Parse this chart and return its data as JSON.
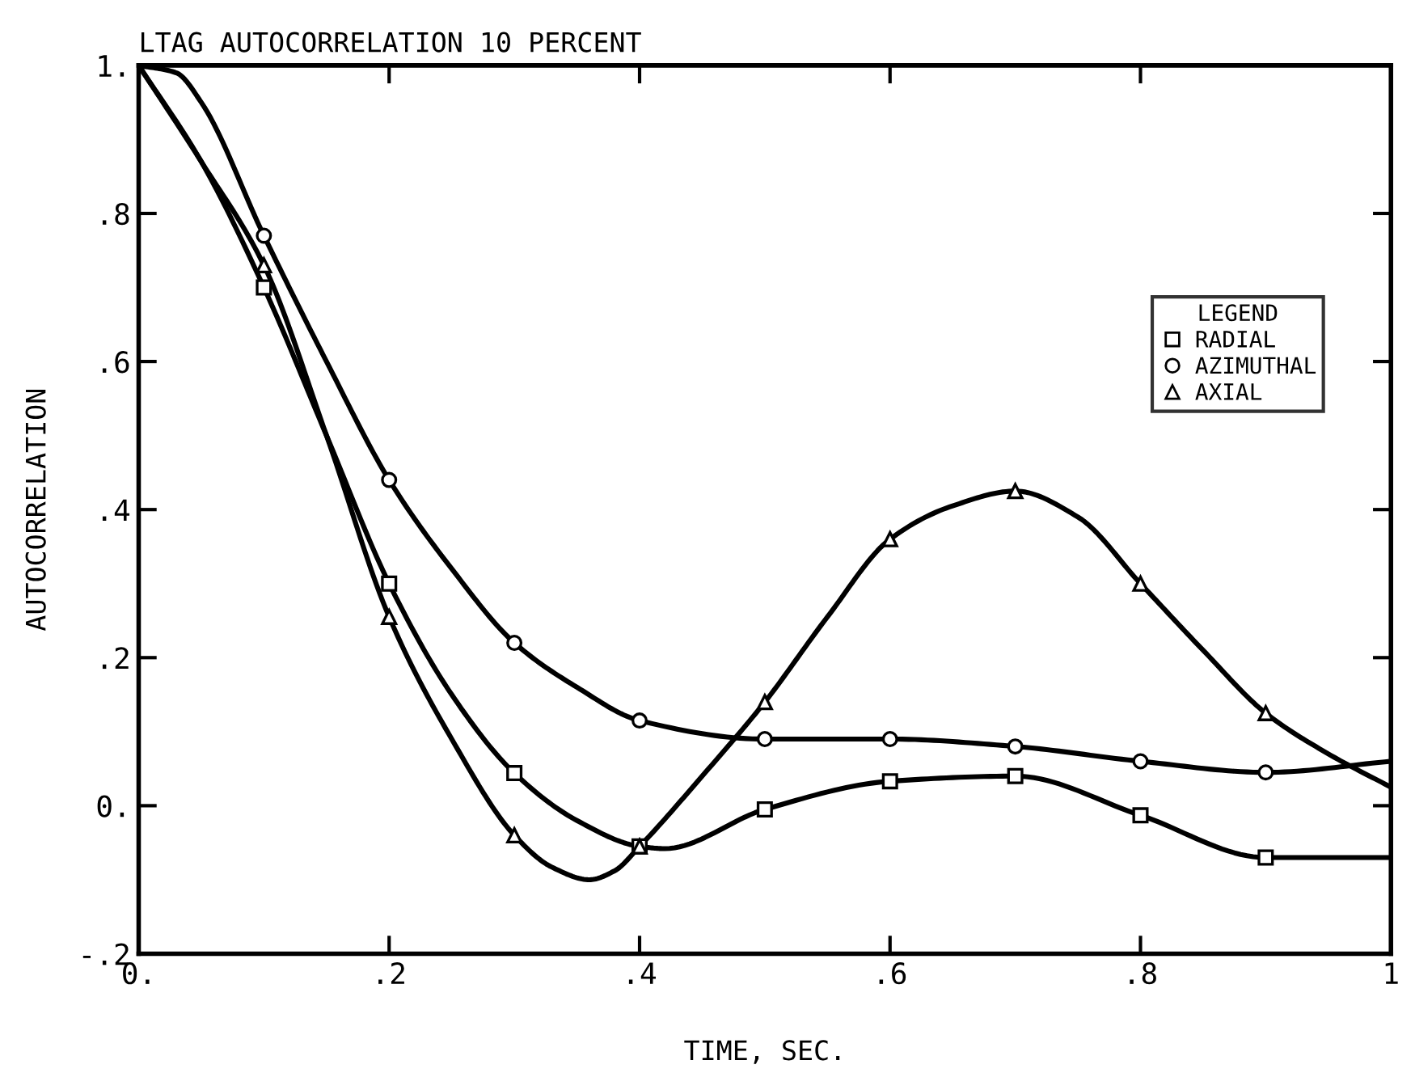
{
  "chart_data": {
    "type": "line",
    "title": "LTAG AUTOCORRELATION 10 PERCENT",
    "xlabel": "TIME, SEC.",
    "ylabel": "AUTOCORRELATION",
    "legend_title": "LEGEND",
    "series": [
      {
        "color": "#000000",
        "marker": "none",
        "x": [
          0,
          0.05,
          0.1,
          0.15,
          0.2,
          0.25,
          0.3,
          0.35,
          0.4,
          0.42,
          0.5,
          0.6,
          0.7,
          0.8,
          0.9,
          1.0
        ],
        "values": [
          1.0,
          0.87,
          0.7,
          0.5,
          0.3,
          0.15,
          0.044,
          -0.02,
          -0.055,
          -0.058,
          -0.005,
          0.033,
          0.04,
          -0.013,
          -0.07,
          -0.07
        ]
      },
      {
        "color": "#000000",
        "marker": "none",
        "x": [
          0,
          0.03,
          0.05,
          0.1,
          0.15,
          0.2,
          0.25,
          0.3,
          0.35,
          0.4,
          0.5,
          0.6,
          0.7,
          0.8,
          0.9,
          1.0
        ],
        "values": [
          1.0,
          0.99,
          0.95,
          0.77,
          0.6,
          0.44,
          0.32,
          0.22,
          0.16,
          0.115,
          0.09,
          0.09,
          0.08,
          0.06,
          0.045,
          0.06
        ]
      },
      {
        "color": "#000000",
        "marker": "none",
        "x": [
          0,
          0.05,
          0.1,
          0.15,
          0.2,
          0.25,
          0.3,
          0.33,
          0.36,
          0.38,
          0.4,
          0.45,
          0.5,
          0.55,
          0.6,
          0.65,
          0.7,
          0.75,
          0.8,
          0.85,
          0.9,
          0.95,
          1.0
        ],
        "values": [
          1.0,
          0.87,
          0.73,
          0.5,
          0.255,
          0.09,
          -0.04,
          -0.083,
          -0.1,
          -0.088,
          -0.055,
          0.04,
          0.14,
          0.255,
          0.36,
          0.405,
          0.425,
          0.39,
          0.3,
          0.21,
          0.125,
          0.07,
          0.025
        ]
      },
      {
        "type": "scatter",
        "name": "RADIAL",
        "color": "#000000",
        "marker": "square",
        "x": [
          0.1,
          0.2,
          0.3,
          0.4,
          0.5,
          0.6,
          0.7,
          0.8,
          0.9
        ],
        "values": [
          0.7,
          0.3,
          0.044,
          -0.055,
          -0.005,
          0.033,
          0.04,
          -0.013,
          -0.07
        ]
      },
      {
        "type": "scatter",
        "name": "AZIMUTHAL",
        "color": "#000000",
        "marker": "circle",
        "x": [
          0.1,
          0.2,
          0.3,
          0.4,
          0.5,
          0.6,
          0.7,
          0.8,
          0.9
        ],
        "values": [
          0.77,
          0.44,
          0.22,
          0.115,
          0.09,
          0.09,
          0.08,
          0.06,
          0.045
        ]
      },
      {
        "type": "scatter",
        "name": "AXIAL",
        "color": "#000000",
        "marker": "triangle",
        "x": [
          0.1,
          0.2,
          0.3,
          0.4,
          0.5,
          0.6,
          0.7,
          0.8,
          0.9
        ],
        "values": [
          0.73,
          0.255,
          -0.04,
          -0.055,
          0.14,
          0.36,
          0.425,
          0.3,
          0.125
        ]
      }
    ],
    "xlim": [
      0,
      1
    ],
    "xticks": [
      {
        "value": 0,
        "label": "0."
      },
      {
        "value": 0.2,
        "label": ".2"
      },
      {
        "value": 0.4,
        "label": ".4"
      },
      {
        "value": 0.6,
        "label": ".6"
      },
      {
        "value": 0.8,
        "label": ".8"
      },
      {
        "value": 1,
        "label": "1"
      }
    ],
    "ylim": [
      -0.2,
      1
    ],
    "yticks": [
      {
        "value": -0.2,
        "label": "-.2"
      },
      {
        "value": 0,
        "label": "0."
      },
      {
        "value": 0.2,
        "label": ".2"
      },
      {
        "value": 0.4,
        "label": ".4"
      },
      {
        "value": 0.6,
        "label": ".6"
      },
      {
        "value": 0.8,
        "label": ".8"
      },
      {
        "value": 1,
        "label": "1."
      }
    ],
    "grid": false,
    "legend": "right"
  }
}
